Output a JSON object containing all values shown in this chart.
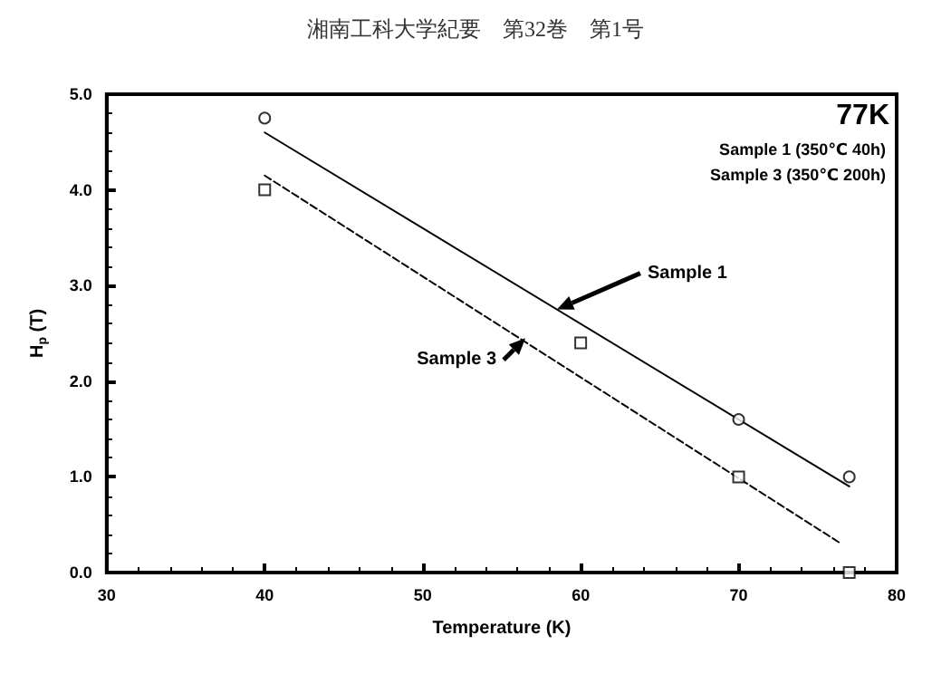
{
  "chart_data": {
    "type": "scatter",
    "xlabel": "Temperature (K)",
    "ylabel": "H$_{p}$ (T)",
    "xlim": [
      30,
      80
    ],
    "xticks": [
      30,
      40,
      50,
      60,
      70,
      80
    ],
    "ylim": [
      0,
      5
    ],
    "yticks": [
      {
        "value": 0,
        "label": "0.0"
      },
      {
        "value": 1,
        "label": "1.0"
      },
      {
        "value": 2,
        "label": "2.0"
      },
      {
        "value": 3,
        "label": "3.0"
      },
      {
        "value": 4,
        "label": "4.0"
      },
      {
        "value": 5,
        "label": "5.0"
      }
    ],
    "grid": false,
    "series": [
      {
        "color": "#000000",
        "marker": "circle",
        "x": [
          40,
          70,
          77
        ],
        "values": [
          4.75,
          1.6,
          1.0
        ]
      },
      {
        "color": "#000000",
        "marker": "square",
        "x": [
          40,
          60,
          70,
          77
        ],
        "values": [
          4.0,
          2.4,
          1.0,
          0.0
        ]
      },
      {
        "type": "line",
        "color": "#000000",
        "line_style": "solid",
        "x": [
          40,
          77
        ],
        "values": [
          4.6,
          0.9
        ]
      },
      {
        "type": "line",
        "color": "#000000",
        "line_style": "dashed",
        "x": [
          40,
          76.5
        ],
        "values": [
          4.15,
          0.3
        ]
      }
    ],
    "annotations": [
      "湘南工科大学紀要　第32巻　第1号",
      "77K",
      "Sample 1 (350℃ 40h)",
      "Sample 3 (350℃ 200h)",
      {
        "text": "Sample 1",
        "x": 58.5,
        "y": 2.75
      },
      {
        "text": "Sample 3",
        "x": 56.5,
        "y": 2.45
      }
    ]
  }
}
